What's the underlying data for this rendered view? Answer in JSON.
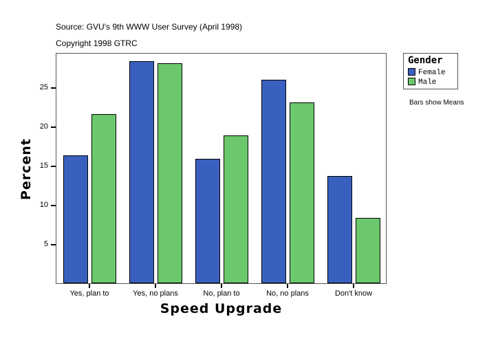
{
  "header": {
    "source": "Source: GVU's 9th WWW User Survey (April 1998)",
    "copyright": "Copyright 1998 GTRC"
  },
  "legend": {
    "title": "Gender",
    "items": [
      {
        "label": "Female",
        "color": "#3a60bf"
      },
      {
        "label": "Male",
        "color": "#6cc86c"
      }
    ],
    "note": "Bars show Means"
  },
  "axes": {
    "xlabel": "Speed Upgrade",
    "ylabel": "Percent",
    "yticks": [
      "5",
      "10",
      "15",
      "20",
      "25"
    ]
  },
  "chart_data": {
    "type": "bar",
    "title": "",
    "subtitle": "Source: GVU's 9th WWW User Survey (April 1998) / Copyright 1998 GTRC",
    "xlabel": "Speed Upgrade",
    "ylabel": "Percent",
    "categories": [
      "Yes, plan to",
      "Yes, no plans",
      "No, plan to",
      "No, no plans",
      "Don't know"
    ],
    "series": [
      {
        "name": "Female",
        "color": "#3a60bf",
        "values": [
          16.3,
          28.3,
          15.9,
          26.0,
          13.7
        ]
      },
      {
        "name": "Male",
        "color": "#6cc86c",
        "values": [
          21.6,
          28.1,
          18.9,
          23.1,
          8.3
        ]
      }
    ],
    "ylim": [
      0,
      29.5
    ],
    "yticks": [
      5,
      10,
      15,
      20,
      25
    ],
    "grid": false,
    "legend_position": "right",
    "legend_title": "Gender",
    "annotation": "Bars show Means"
  }
}
